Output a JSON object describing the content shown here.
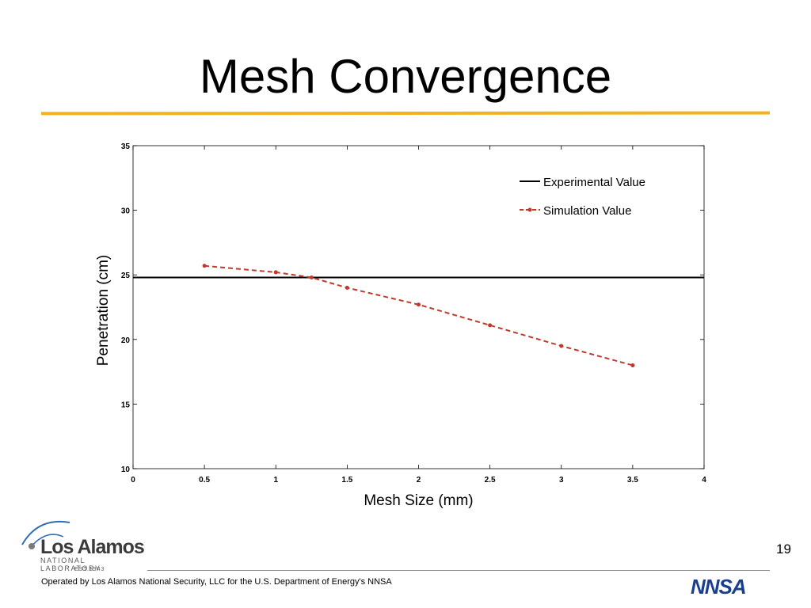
{
  "slide": {
    "title": "Mesh Convergence",
    "page_number": "19",
    "footer": "Operated by Los Alamos National Security, LLC for the U.S. Department of Energy's NNSA",
    "logo": {
      "main": "Los Alamos",
      "sub": "NATIONAL LABORATORY",
      "est": "EST.1943"
    },
    "nnsa_logo": "NNSA",
    "colors": {
      "accent_rule": "#f2b21d",
      "simulation": "#c0392b",
      "experimental": "#000000"
    }
  },
  "chart_data": {
    "type": "line",
    "xlabel": "Mesh Size (mm)",
    "ylabel": "Penetration (cm)",
    "xlim": [
      0,
      4
    ],
    "ylim": [
      10,
      35
    ],
    "xticks": [
      "0",
      "0.5",
      "1",
      "1.5",
      "2",
      "2.5",
      "3",
      "3.5",
      "4"
    ],
    "yticks": [
      "10",
      "15",
      "20",
      "25",
      "30",
      "35"
    ],
    "legend_position": "top-right",
    "grid": false,
    "series": [
      {
        "name": "Experimental Value",
        "style": "solid",
        "color": "#000000",
        "x": [
          0,
          4
        ],
        "y": [
          24.8,
          24.8
        ]
      },
      {
        "name": "Simulation Value",
        "style": "dashed-markers",
        "color": "#c0392b",
        "x": [
          0.5,
          1,
          1.25,
          1.5,
          2,
          2.5,
          3,
          3.5
        ],
        "y": [
          25.7,
          25.2,
          24.8,
          24.0,
          22.7,
          21.1,
          19.5,
          18.0
        ]
      }
    ]
  }
}
